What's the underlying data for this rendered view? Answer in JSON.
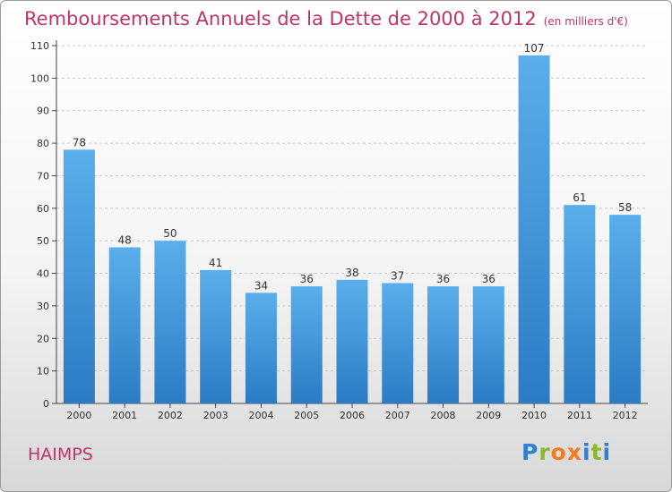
{
  "chart_data": {
    "type": "bar",
    "title": "Remboursements Annuels de la Dette de 2000 à 2012",
    "unit": "(en milliers d'€)",
    "categories": [
      "2000",
      "2001",
      "2002",
      "2003",
      "2004",
      "2005",
      "2006",
      "2007",
      "2008",
      "2009",
      "2010",
      "2011",
      "2012"
    ],
    "values": [
      78,
      48,
      50,
      41,
      34,
      36,
      38,
      37,
      36,
      36,
      107,
      61,
      58
    ],
    "ylim": [
      0,
      110
    ],
    "yticks": [
      0,
      10,
      20,
      30,
      40,
      50,
      60,
      70,
      80,
      90,
      100,
      110
    ],
    "grid": true,
    "bar_color": "#4a9fe0"
  },
  "commune": "HAIMPS",
  "logo": {
    "text": "Proxiti",
    "colors": [
      "#2f7fd0",
      "#8ab82e",
      "#f07c1e",
      "#f07c1e",
      "#2f7fd0",
      "#8ab82e",
      "#2f7fd0"
    ]
  }
}
